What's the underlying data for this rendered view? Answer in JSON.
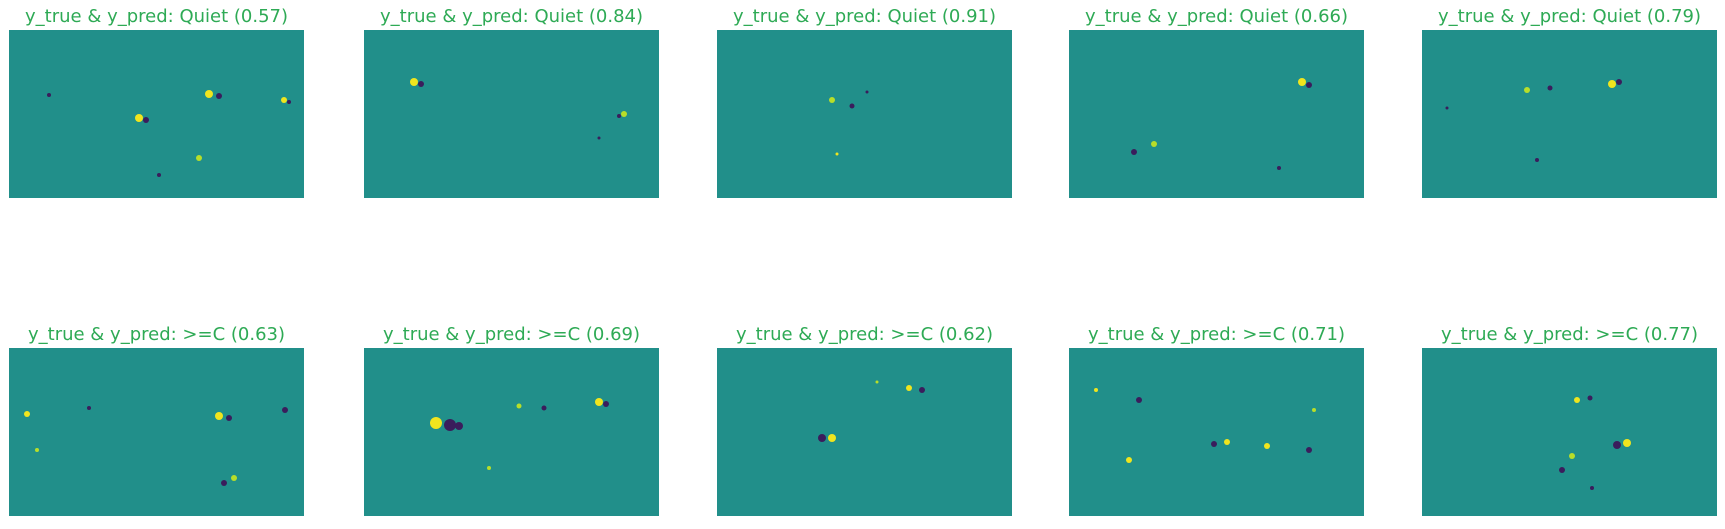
{
  "colors": {
    "title": "#2eaa55",
    "background_field": "#218f8a",
    "positive_polarity": "#f0e51e",
    "negative_polarity": "#3a1d5c"
  },
  "panels": [
    {
      "title": "y_true & y_pred: Quiet (0.57)",
      "label": "Quiet",
      "confidence": 0.57
    },
    {
      "title": "y_true & y_pred: Quiet (0.84)",
      "label": "Quiet",
      "confidence": 0.84
    },
    {
      "title": "y_true & y_pred: Quiet (0.91)",
      "label": "Quiet",
      "confidence": 0.91
    },
    {
      "title": "y_true & y_pred: Quiet (0.66)",
      "label": "Quiet",
      "confidence": 0.66
    },
    {
      "title": "y_true & y_pred: Quiet (0.79)",
      "label": "Quiet",
      "confidence": 0.79
    },
    {
      "title": "y_true & y_pred: >=C (0.63)",
      "label": ">=C",
      "confidence": 0.63
    },
    {
      "title": "y_true & y_pred: >=C (0.69)",
      "label": ">=C",
      "confidence": 0.69
    },
    {
      "title": "y_true & y_pred: >=C (0.62)",
      "label": ">=C",
      "confidence": 0.62
    },
    {
      "title": "y_true & y_pred: >=C (0.71)",
      "label": ">=C",
      "confidence": 0.71
    },
    {
      "title": "y_true & y_pred: >=C (0.77)",
      "label": ">=C",
      "confidence": 0.77
    }
  ]
}
